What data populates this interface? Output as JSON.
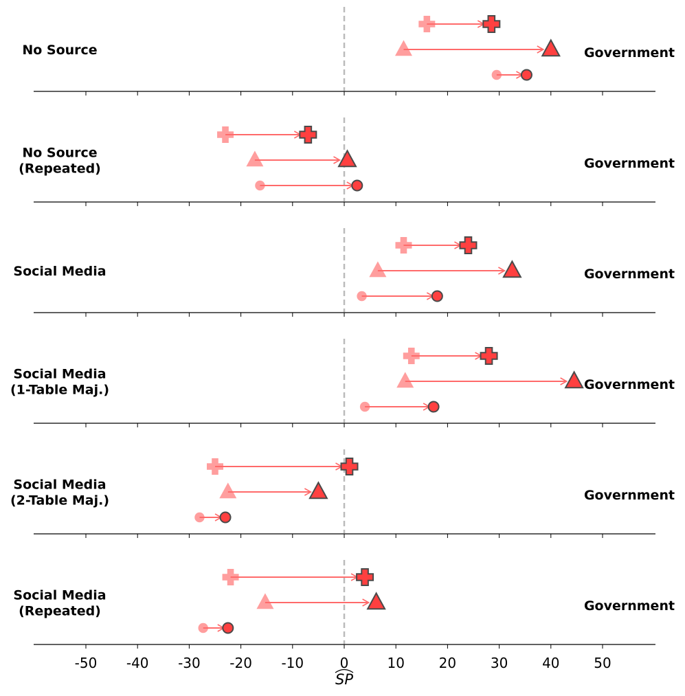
{
  "chart_data": {
    "type": "dumbbell",
    "xlabel": "SP",
    "xlabel_hat": true,
    "xlim": [
      -60,
      60
    ],
    "xticks": [
      -50,
      -40,
      -30,
      -20,
      -10,
      0,
      10,
      20,
      30,
      40,
      50
    ],
    "reference_line": 0,
    "colors": {
      "start": "#ff9e9e",
      "end": "#ff4040",
      "arrow": "#ff6a6a",
      "edge": "#4a4a4a",
      "ref": "#bbbbbb"
    },
    "marker_order": [
      "cross",
      "triangle",
      "circle"
    ],
    "panels": [
      {
        "label": "No Source",
        "right_label": "Government",
        "series": [
          {
            "marker": "cross",
            "start": 16,
            "end": 28.5
          },
          {
            "marker": "triangle",
            "start": 11.5,
            "end": 40
          },
          {
            "marker": "circle",
            "start": 29.5,
            "end": 35.3
          }
        ]
      },
      {
        "label": "No Source\n(Repeated)",
        "right_label": "Government",
        "series": [
          {
            "marker": "cross",
            "start": -23,
            "end": -7
          },
          {
            "marker": "triangle",
            "start": -17.3,
            "end": 0.6
          },
          {
            "marker": "circle",
            "start": -16.3,
            "end": 2.5
          }
        ]
      },
      {
        "label": "Social Media",
        "right_label": "Government",
        "series": [
          {
            "marker": "cross",
            "start": 11.5,
            "end": 24
          },
          {
            "marker": "triangle",
            "start": 6.5,
            "end": 32.5
          },
          {
            "marker": "circle",
            "start": 3.4,
            "end": 18
          }
        ]
      },
      {
        "label": "Social Media\n(1-Table Maj.)",
        "right_label": "Government",
        "series": [
          {
            "marker": "cross",
            "start": 13,
            "end": 28
          },
          {
            "marker": "triangle",
            "start": 11.8,
            "end": 44.5
          },
          {
            "marker": "circle",
            "start": 4,
            "end": 17.3
          }
        ]
      },
      {
        "label": "Social Media\n(2-Table Maj.)",
        "right_label": "Government",
        "series": [
          {
            "marker": "cross",
            "start": -25,
            "end": 1
          },
          {
            "marker": "triangle",
            "start": -22.5,
            "end": -5
          },
          {
            "marker": "circle",
            "start": -28,
            "end": -23
          }
        ]
      },
      {
        "label": "Social Media\n(Repeated)",
        "right_label": "Government",
        "series": [
          {
            "marker": "cross",
            "start": -22,
            "end": 4
          },
          {
            "marker": "triangle",
            "start": -15.3,
            "end": 6.2
          },
          {
            "marker": "circle",
            "start": -27.3,
            "end": -22.5
          }
        ]
      }
    ]
  }
}
